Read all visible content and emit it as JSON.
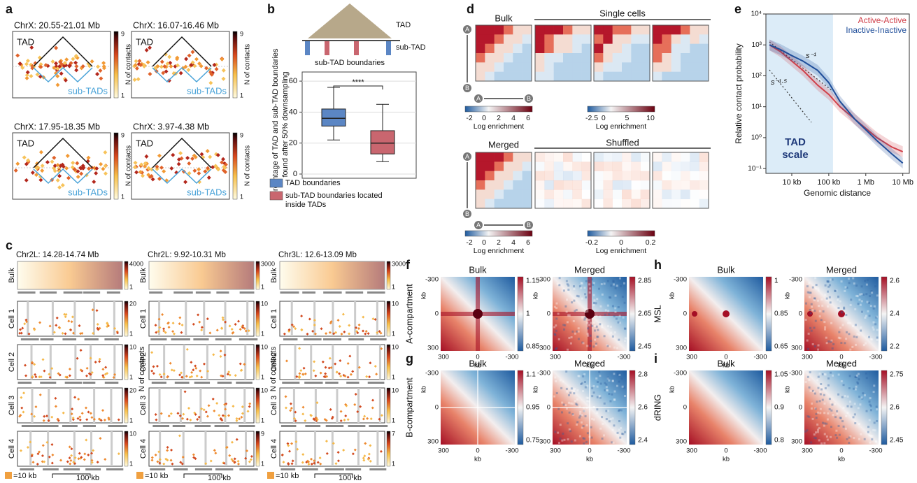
{
  "a": {
    "label": "a",
    "scale_label": "N of contacts",
    "maps": [
      {
        "title": "ChrX: 20.55-21.01 Mb",
        "tad": "TAD",
        "subtads": "sub-TADs",
        "scale_max": 9,
        "scale_min": 1
      },
      {
        "title": "ChrX: 16.07-16.46 Mb",
        "tad": "TAD",
        "subtads": "sub-TADs",
        "scale_max": 9,
        "scale_min": 1
      },
      {
        "title": "ChrX: 17.95-18.35 Mb",
        "tad": "TAD",
        "subtads": "sub-TADs",
        "scale_max": 9,
        "scale_min": 1
      },
      {
        "title": "ChrX: 3.97-4.38 Mb",
        "tad": "TAD",
        "subtads": "sub-TADs",
        "scale_max": 9,
        "scale_min": 1
      }
    ]
  },
  "b": {
    "label": "b",
    "diagram": {
      "tad": "TAD",
      "subtad": "sub-TAD",
      "boundaries": "sub-TAD boundaries"
    },
    "ylabel": [
      "Percentage of TAD and sub-TAD boundaries",
      "found after 50% downsampling"
    ],
    "ylim": [
      0,
      65
    ],
    "yticks": [
      0,
      20,
      40,
      60
    ],
    "significance": "****",
    "boxes": [
      {
        "name": [
          "TAD boundaries"
        ],
        "color": "#5b86c4",
        "whisker_low": 22,
        "q1": 31,
        "median": 36,
        "q3": 42,
        "whisker_high": 56
      },
      {
        "name": [
          "sub-TAD boundaries located",
          "inside TADs"
        ],
        "color": "#c9666f",
        "whisker_low": 8,
        "q1": 13,
        "median": 20,
        "q3": 28,
        "whisker_high": 45
      }
    ]
  },
  "d": {
    "label": "d",
    "bulk": "Bulk",
    "single_cells": "Single cells",
    "merged": "Merged",
    "shuffled": "Shuffled",
    "axis_labels": [
      "A",
      "B"
    ],
    "colorbars": [
      {
        "ticks": [
          -2,
          0,
          2,
          4,
          6
        ],
        "label": "Log enrichment"
      },
      {
        "ticks": [
          -2.5,
          0,
          5,
          10
        ],
        "label": "Log enrichment"
      },
      {
        "ticks": [
          -2,
          0,
          2,
          4,
          6
        ],
        "label": "Log enrichment"
      },
      {
        "ticks": [
          -0.2,
          0,
          0.2
        ],
        "label": "Log enrichment"
      }
    ]
  },
  "e": {
    "label": "e",
    "type": "line",
    "log": true,
    "ylabel": "Relative contact probability",
    "xlabel": "Genomic distance",
    "xlim": [
      2000,
      15000000
    ],
    "ylim": [
      0.07,
      10000
    ],
    "xticks": [
      {
        "value": 10000,
        "label": "10 kb"
      },
      {
        "value": 100000,
        "label": "100 kb"
      },
      {
        "value": 1000000,
        "label": "1 Mb"
      },
      {
        "value": 10000000,
        "label": "10 Mb"
      }
    ],
    "yticks": [
      {
        "value": 0.1,
        "label": "10⁻¹"
      },
      {
        "value": 1,
        "label": "10⁰"
      },
      {
        "value": 10,
        "label": "10¹"
      },
      {
        "value": 100,
        "label": "10²"
      },
      {
        "value": 1000,
        "label": "10³"
      },
      {
        "value": 10000,
        "label": "10⁴"
      }
    ],
    "x": [
      2500,
      5000,
      10000,
      20000,
      50000,
      100000,
      200000,
      500000,
      1000000,
      2000000,
      5000000,
      10000000
    ],
    "series": [
      {
        "name": "Active-Active",
        "color": "#d0404a",
        "values": [
          1000,
          600,
          300,
          150,
          50,
          25,
          10,
          4,
          2,
          1,
          0.5,
          0.35
        ]
      },
      {
        "name": "Inactive-Inactive",
        "color": "#1f4e9a",
        "values": [
          1000,
          700,
          450,
          300,
          150,
          60,
          15,
          4,
          1.8,
          0.8,
          0.3,
          0.15
        ]
      }
    ],
    "annotations": [
      "s⁻¹",
      "s⁻¹·⁵"
    ],
    "region_label": [
      "TAD",
      "scale"
    ]
  },
  "c": {
    "label": "c",
    "rows": [
      "Bulk",
      "Cell 1",
      "Cell 2",
      "Cell 3",
      "Cell 4"
    ],
    "scale_min": 1,
    "scale_label": "N of contacts",
    "scale_bar": [
      "=10 kb",
      "100 kb"
    ],
    "columns": [
      {
        "title": "Chr2L: 14.28-14.74 Mb",
        "scale_max": [
          4000,
          20,
          10,
          20,
          10
        ]
      },
      {
        "title": "Chr2L: 9.92-10.31 Mb",
        "scale_max": [
          3000,
          10,
          10,
          10,
          9
        ]
      },
      {
        "title": "Chr3L: 12.6-13.09 Mb",
        "scale_max": [
          3000,
          10,
          10,
          10,
          7
        ]
      }
    ]
  },
  "fi": {
    "y_ticks": [
      -300,
      0,
      300
    ],
    "x_ticks": [
      300,
      0,
      -300
    ],
    "unit": "kb",
    "panels": [
      {
        "label": "f",
        "row_label": "A-compartment",
        "maps": [
          {
            "title": "Bulk",
            "ticks": [
              1.15,
              1,
              0.85
            ]
          },
          {
            "title": "Merged",
            "ticks": [
              2.85,
              2.65,
              2.45
            ]
          }
        ]
      },
      {
        "label": "g",
        "row_label": "B-compartment",
        "maps": [
          {
            "title": "Bulk",
            "ticks": [
              1.1,
              0.95,
              0.75
            ]
          },
          {
            "title": "Merged",
            "ticks": [
              2.8,
              2.6,
              2.4
            ]
          }
        ]
      },
      {
        "label": "h",
        "row_label": "MSL",
        "maps": [
          {
            "title": "Bulk",
            "ticks": [
              1,
              0.85,
              0.65
            ]
          },
          {
            "title": "Merged",
            "ticks": [
              2.6,
              2.4,
              2.2
            ]
          }
        ]
      },
      {
        "label": "i",
        "row_label": "dRING",
        "maps": [
          {
            "title": "Bulk",
            "ticks": [
              1.05,
              0.9,
              0.8
            ]
          },
          {
            "title": "Merged",
            "ticks": [
              2.75,
              2.6,
              2.45
            ]
          }
        ]
      }
    ]
  }
}
